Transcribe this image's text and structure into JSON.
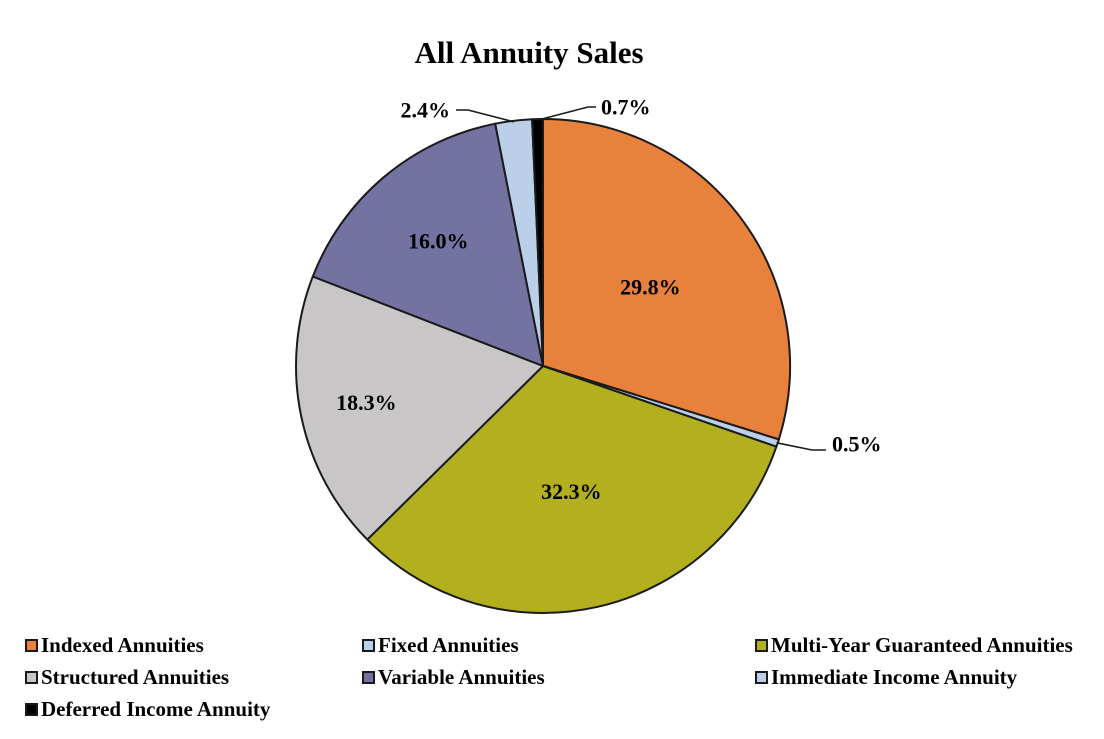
{
  "chart_data": {
    "type": "pie",
    "title": "All Annuity Sales",
    "unit": "%",
    "start_angle": "12 o'clock",
    "direction": "clockwise",
    "legend_position": "bottom",
    "slices": [
      {
        "label": "Indexed Annuities",
        "value": 29.8,
        "display": "29.8%",
        "color": "#E8813B",
        "label_placement": "inside"
      },
      {
        "label": "Fixed Annuities",
        "value": 0.5,
        "display": "0.5%",
        "color": "#BCCFE8",
        "label_placement": "outside"
      },
      {
        "label": "Multi-Year Guaranteed Annuities",
        "value": 32.3,
        "display": "32.3%",
        "color": "#B2B01F",
        "label_placement": "inside"
      },
      {
        "label": "Structured Annuities",
        "value": 18.3,
        "display": "18.3%",
        "color": "#C9C6C7",
        "label_placement": "inside"
      },
      {
        "label": "Variable Annuities",
        "value": 16.0,
        "display": "16.0%",
        "color": "#7372A0",
        "label_placement": "inside"
      },
      {
        "label": "Immediate Income Annuity",
        "value": 2.4,
        "display": "2.4%",
        "color": "#BCCFE8",
        "label_placement": "outside"
      },
      {
        "label": "Deferred Income Annuity",
        "value": 0.7,
        "display": "0.7%",
        "color": "#000000",
        "label_placement": "outside"
      }
    ],
    "outline_color": "#1A1A1A",
    "label_text_color": "#000000"
  }
}
